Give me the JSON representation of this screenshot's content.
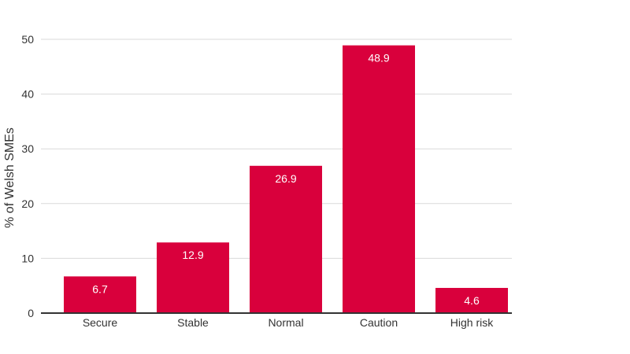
{
  "chart_data": {
    "type": "bar",
    "title": "",
    "xlabel": "",
    "ylabel": "% of Welsh SMEs",
    "categories": [
      "Secure",
      "Stable",
      "Normal",
      "Caution",
      "High risk"
    ],
    "values": [
      6.7,
      12.9,
      26.9,
      48.9,
      4.6
    ],
    "data_labels": [
      "6.7",
      "12.9",
      "26.9",
      "48.9",
      "4.6"
    ],
    "ylim": [
      0,
      50
    ],
    "y_ticks": [
      0,
      10,
      20,
      30,
      40,
      50
    ],
    "grid": true,
    "legend": "none",
    "colors": {
      "bar": "#d9003c",
      "grid": "#d9d9d9",
      "axis": "#333333",
      "data_label": "#ffffff"
    }
  }
}
